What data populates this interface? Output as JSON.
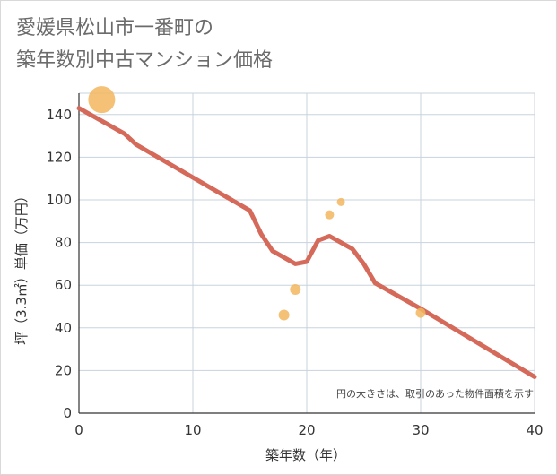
{
  "title": {
    "line1": "愛媛県松山市一番町の",
    "line2": "築年数別中古マンション価格"
  },
  "chart_data": {
    "type": "scatter",
    "title": "愛媛県松山市一番町の築年数別中古マンション価格",
    "xlabel": "築年数（年）",
    "ylabel": "坪（3.3㎡）単価（万円）",
    "xlim": [
      0,
      40
    ],
    "ylim": [
      0,
      150
    ],
    "x_ticks": [
      0,
      10,
      20,
      30,
      40
    ],
    "y_ticks": [
      0,
      20,
      40,
      60,
      80,
      100,
      120,
      140
    ],
    "grid": true,
    "annotation": "円の大きさは、取引のあった物件面積を示す",
    "points": [
      {
        "x": 2,
        "y": 147,
        "size": 3.0
      },
      {
        "x": 18,
        "y": 46,
        "size": 1.2
      },
      {
        "x": 19,
        "y": 58,
        "size": 1.2
      },
      {
        "x": 22,
        "y": 93,
        "size": 1.0
      },
      {
        "x": 23,
        "y": 99,
        "size": 0.9
      },
      {
        "x": 30,
        "y": 47,
        "size": 1.1
      }
    ],
    "trend_line": {
      "x": [
        0,
        4,
        5,
        15,
        16,
        17,
        19,
        20,
        21,
        22,
        24,
        25,
        26,
        30,
        40
      ],
      "y": [
        143,
        131,
        126,
        95,
        84,
        76,
        70,
        71,
        81,
        83,
        77,
        70,
        61,
        49,
        17
      ]
    },
    "colors": {
      "point": "#f2b65e",
      "line": "#d5695a",
      "grid": "#c8d3de",
      "axis": "#333333"
    }
  }
}
